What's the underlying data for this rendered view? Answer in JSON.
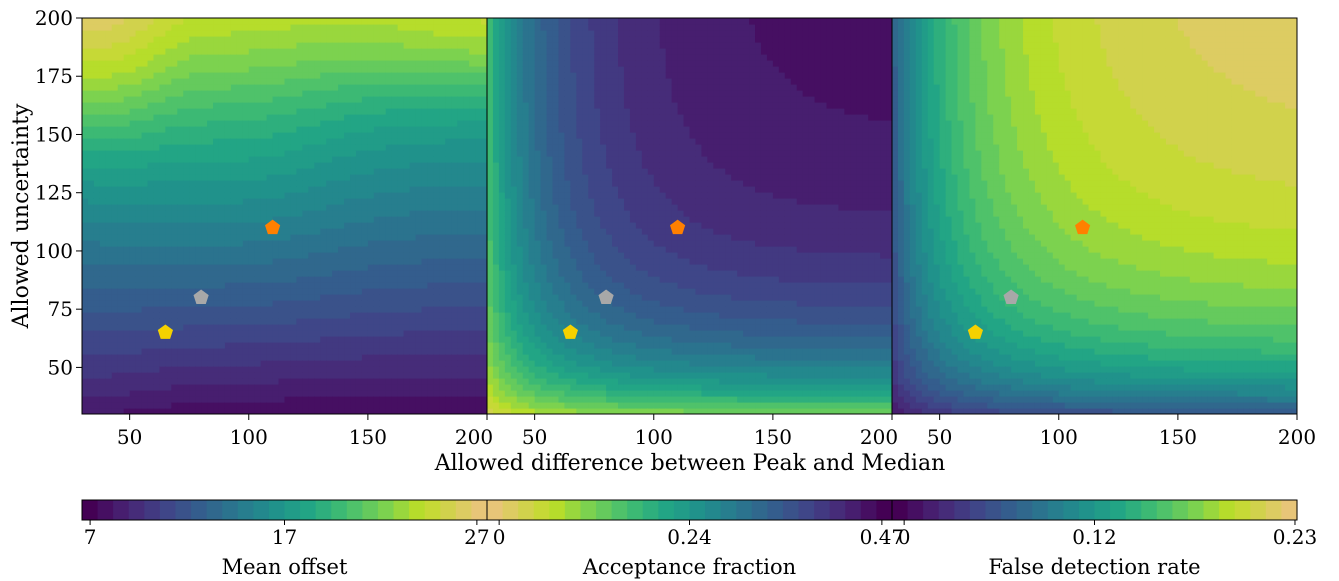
{
  "chart_data": [
    {
      "type": "heatmap",
      "xlabel": "Allowed difference between Peak and Median",
      "ylabel": "Allowed uncertainty",
      "xlim": [
        30,
        200
      ],
      "ylim": [
        30,
        200
      ],
      "xticks": [
        50,
        100,
        150,
        200
      ],
      "yticks": [
        50,
        75,
        100,
        125,
        150,
        175,
        200
      ],
      "colormap": "viridis",
      "marker_shape": "pentagon",
      "markers": [
        {
          "x": 65,
          "y": 65,
          "color": "#f5d100"
        },
        {
          "x": 80,
          "y": 80,
          "color": "#a8a8a8"
        },
        {
          "x": 110,
          "y": 110,
          "color": "#ff8000"
        }
      ],
      "panels": [
        {
          "colorbar_label": "Mean offset",
          "colorbar_ticks": [
            "7",
            "17",
            "27"
          ],
          "range": [
            7,
            28
          ],
          "colormap_reversed": false
        },
        {
          "colorbar_label": "Acceptance fraction",
          "colorbar_ticks": [
            "0",
            "0.24",
            "0.47"
          ],
          "range": [
            0,
            0.49
          ],
          "colormap_reversed": true
        },
        {
          "colorbar_label": "False detection rate",
          "colorbar_ticks": [
            "0",
            "0.12",
            "0.23"
          ],
          "range": [
            0,
            0.235
          ],
          "colormap_reversed": false
        }
      ]
    }
  ]
}
